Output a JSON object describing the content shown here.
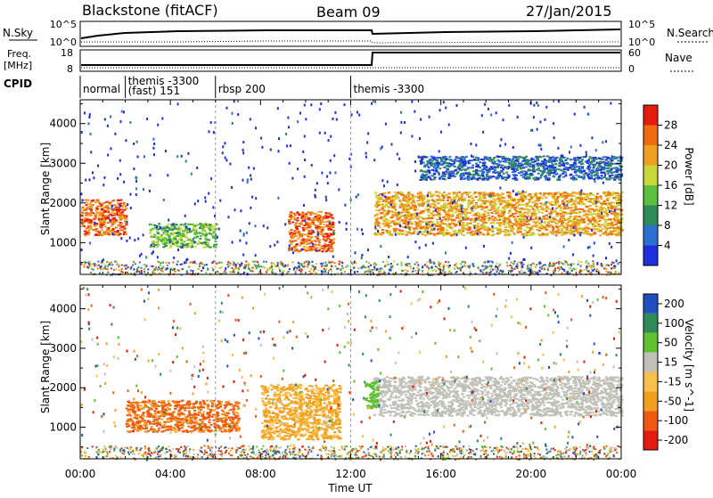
{
  "header": {
    "station": "Blackstone (fitACF)",
    "beam": "Beam 09",
    "date": "27/Jan/2015"
  },
  "param_labels": {
    "nsky": "N.Sky",
    "nsearch": "N.Search",
    "freq_line1": "Freq.",
    "freq_line2": "[MHz]",
    "nave": "Nave",
    "cpid": "CPID"
  },
  "param_ticks": {
    "nsky_left": [
      "10^5",
      "10^0"
    ],
    "nsky_right": [
      "10^5",
      "10^0"
    ],
    "freq_left": [
      "18",
      "8"
    ],
    "nave_right": [
      "60",
      "0"
    ]
  },
  "cpid_segments": [
    {
      "label": "normal",
      "start_hour": 0.0
    },
    {
      "label": "themis -3300",
      "start_hour": 2.0
    },
    {
      "label": "(fast) 151",
      "start_hour": 2.0
    },
    {
      "label": "rbsp 200",
      "start_hour": 6.0
    },
    {
      "label": "themis -3300",
      "start_hour": 12.0
    }
  ],
  "colors": {
    "power_scale": [
      "#1f2fdc",
      "#2a6fd1",
      "#2e8b57",
      "#5cbf3f",
      "#c8d838",
      "#f0a020",
      "#f06a10",
      "#e61b10"
    ],
    "velocity_scale": [
      "#e61b10",
      "#f05a10",
      "#f2a020",
      "#f7c04a",
      "#c0c0b8",
      "#60c030",
      "#2e8b57",
      "#2050c0"
    ],
    "background_gray": "#c8c8c0"
  },
  "chart_data": [
    {
      "type": "heatmap",
      "title": "",
      "xlabel": "Time UT",
      "ylabel": "Slant Range [km]",
      "x_ticks": [
        "00:00",
        "04:00",
        "08:00",
        "12:00",
        "16:00",
        "20:00",
        "00:00"
      ],
      "xlim_hours": [
        0,
        24
      ],
      "ylim": [
        200,
        4600
      ],
      "y_ticks": [
        1000,
        2000,
        3000,
        4000
      ],
      "colorbar": {
        "label": "Power [dB]",
        "ticks": [
          4,
          8,
          12,
          16,
          20,
          24,
          28
        ]
      },
      "features": [
        {
          "name": "morning backscatter",
          "hours": [
            0.0,
            2.0
          ],
          "range_km": [
            1200,
            2100
          ],
          "level_db": 24
        },
        {
          "name": "mid backscatter",
          "hours": [
            3.0,
            6.0
          ],
          "range_km": [
            900,
            1500
          ],
          "level_db": 14
        },
        {
          "name": "blob",
          "hours": [
            9.2,
            11.2
          ],
          "range_km": [
            800,
            1800
          ],
          "level_db": 26
        },
        {
          "name": "evening band",
          "hours": [
            13.0,
            24.0
          ],
          "range_km": [
            1200,
            2300
          ],
          "level_db": 22
        },
        {
          "name": "upper band",
          "hours": [
            15.0,
            24.0
          ],
          "range_km": [
            2600,
            3200
          ],
          "level_db": 8
        }
      ]
    },
    {
      "type": "heatmap",
      "title": "",
      "xlabel": "Time UT",
      "ylabel": "Slant Range [km]",
      "x_ticks": [
        "00:00",
        "04:00",
        "08:00",
        "12:00",
        "16:00",
        "20:00",
        "00:00"
      ],
      "xlim_hours": [
        0,
        24
      ],
      "ylim": [
        200,
        4600
      ],
      "y_ticks": [
        1000,
        2000,
        3000,
        4000
      ],
      "colorbar": {
        "label": "Velocity [m s^-1]",
        "ticks": [
          200,
          100,
          50,
          15,
          -15,
          -50,
          -100,
          -200
        ]
      },
      "features": [
        {
          "name": "negative flow",
          "hours": [
            2.0,
            7.0
          ],
          "range_km": [
            900,
            1700
          ],
          "velocity": -70
        },
        {
          "name": "negative flow late",
          "hours": [
            8.0,
            11.5
          ],
          "range_km": [
            700,
            2100
          ],
          "velocity": -40
        },
        {
          "name": "ground scatter",
          "hours": [
            13.0,
            24.0
          ],
          "range_km": [
            1300,
            2300
          ],
          "velocity": 0
        },
        {
          "name": "positive patch",
          "hours": [
            12.6,
            13.2
          ],
          "range_km": [
            1500,
            2200
          ],
          "velocity": 30
        }
      ]
    }
  ]
}
